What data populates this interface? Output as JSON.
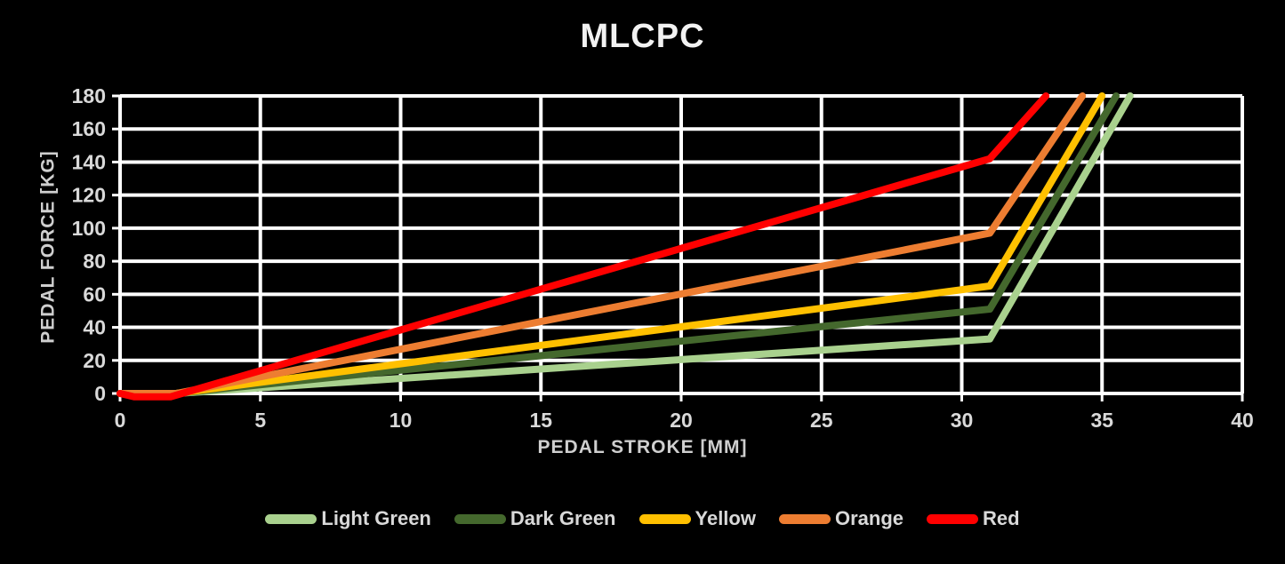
{
  "title": "MLCPC",
  "colors": {
    "background": "#000000",
    "grid": "#FFFFFF",
    "tick_text": "#D9D9D9",
    "title_text": "#F2F2F2",
    "light_green": "#A9D18E",
    "dark_green": "#44682D",
    "yellow": "#FFC000",
    "orange": "#ED7D31",
    "red": "#FF0000"
  },
  "chart_data": {
    "type": "line",
    "title": "MLCPC",
    "xlabel": "PEDAL STROKE [MM]",
    "ylabel": "PEDAL FORCE [KG]",
    "xlim": [
      0,
      40
    ],
    "ylim": [
      0,
      180
    ],
    "x_ticks": [
      0,
      5,
      10,
      15,
      20,
      25,
      30,
      35,
      40
    ],
    "y_ticks": [
      0,
      20,
      40,
      60,
      80,
      100,
      120,
      140,
      160,
      180
    ],
    "grid": true,
    "legend_position": "bottom",
    "series": [
      {
        "name": "Light Green",
        "color": "#A9D18E",
        "points": [
          [
            0,
            0
          ],
          [
            2,
            0
          ],
          [
            31,
            33
          ],
          [
            36,
            180
          ]
        ]
      },
      {
        "name": "Dark Green",
        "color": "#44682D",
        "points": [
          [
            0,
            0
          ],
          [
            2,
            0
          ],
          [
            31,
            51
          ],
          [
            35.5,
            180
          ]
        ]
      },
      {
        "name": "Yellow",
        "color": "#FFC000",
        "points": [
          [
            0,
            0
          ],
          [
            2,
            0
          ],
          [
            31,
            65
          ],
          [
            35,
            180
          ]
        ]
      },
      {
        "name": "Orange",
        "color": "#ED7D31",
        "points": [
          [
            0,
            0
          ],
          [
            2,
            0
          ],
          [
            31,
            97
          ],
          [
            34.3,
            180
          ]
        ]
      },
      {
        "name": "Red",
        "color": "#FF0000",
        "points": [
          [
            0,
            0
          ],
          [
            0.5,
            -2
          ],
          [
            1.8,
            -2
          ],
          [
            31,
            142
          ],
          [
            33,
            180
          ]
        ]
      }
    ]
  }
}
